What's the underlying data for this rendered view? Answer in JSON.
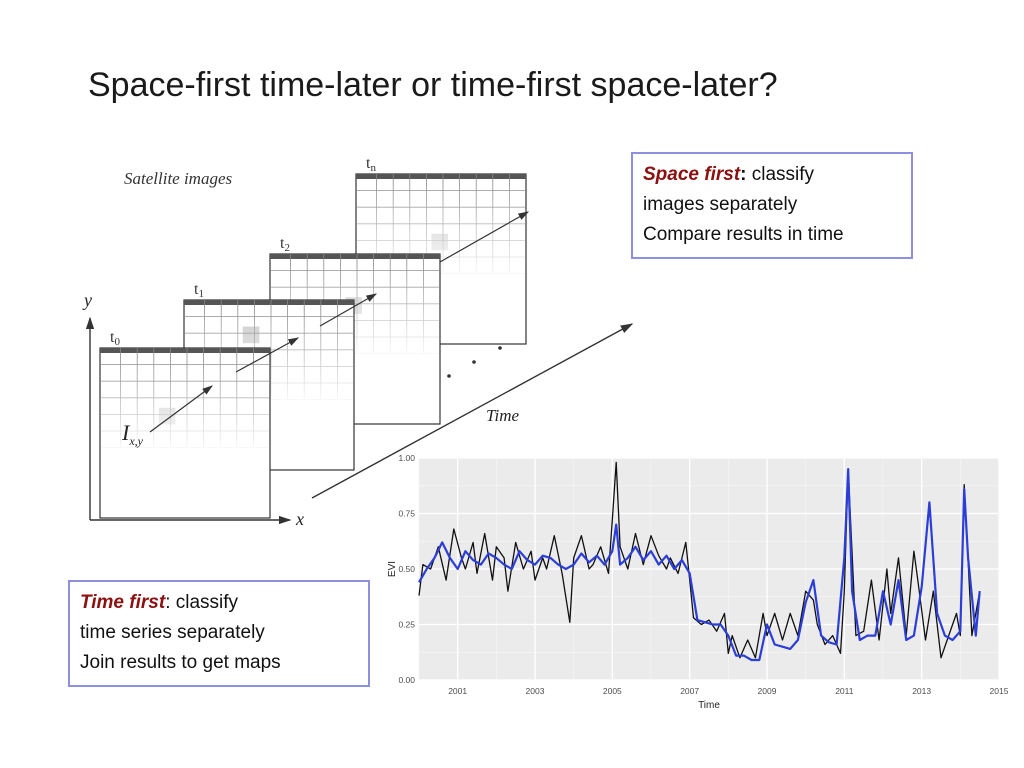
{
  "title": "Space-first time-later or time-first space-later?",
  "diagram": {
    "caption": "Satellite images",
    "frames": [
      {
        "label_base": "t",
        "label_sub": "0"
      },
      {
        "label_base": "t",
        "label_sub": "1"
      },
      {
        "label_base": "t",
        "label_sub": "2"
      },
      {
        "label_base": "t",
        "label_sub": "n"
      }
    ],
    "axis_y": "y",
    "axis_x": "x",
    "time_label": "Time",
    "pixel_label_base": "I",
    "pixel_label_sub": "x,y"
  },
  "space_first": {
    "emph": "Space first",
    "colon": ":",
    "rest": " classify",
    "line2": "images separately",
    "line3": "Compare results in time"
  },
  "time_first": {
    "emph": "Time first",
    "colon": ":",
    "rest": " classify",
    "line2": "time series separately",
    "line3": "Join results to get maps"
  },
  "chart_data": {
    "type": "line",
    "xlabel": "Time",
    "ylabel": "EVI",
    "xlim": [
      2000.0,
      2015.0
    ],
    "ylim": [
      0.0,
      1.0
    ],
    "xticks": [
      2001,
      2003,
      2005,
      2007,
      2009,
      2011,
      2013,
      2015
    ],
    "yticks": [
      "0.00",
      "0.25",
      "0.50",
      "0.75",
      "1.00"
    ],
    "grid": true,
    "series": [
      {
        "color": "#111111",
        "x": [
          2000.0,
          2000.1,
          2000.3,
          2000.5,
          2000.7,
          2000.9,
          2001.1,
          2001.2,
          2001.4,
          2001.5,
          2001.7,
          2001.9,
          2002.0,
          2002.2,
          2002.3,
          2002.5,
          2002.7,
          2002.9,
          2003.0,
          2003.2,
          2003.3,
          2003.5,
          2003.7,
          2003.9,
          2004.0,
          2004.2,
          2004.4,
          2004.5,
          2004.7,
          2004.9,
          2005.0,
          2005.1,
          2005.2,
          2005.4,
          2005.6,
          2005.8,
          2006.0,
          2006.2,
          2006.4,
          2006.5,
          2006.7,
          2006.9,
          2007.0,
          2007.1,
          2007.3,
          2007.5,
          2007.7,
          2007.9,
          2008.0,
          2008.1,
          2008.3,
          2008.5,
          2008.7,
          2008.9,
          2009.0,
          2009.2,
          2009.4,
          2009.6,
          2009.8,
          2010.0,
          2010.2,
          2010.3,
          2010.5,
          2010.7,
          2010.9,
          2011.0,
          2011.1,
          2011.3,
          2011.5,
          2011.7,
          2011.9,
          2012.1,
          2012.2,
          2012.4,
          2012.6,
          2012.8,
          2012.9,
          2013.1,
          2013.3,
          2013.5,
          2013.7,
          2013.9,
          2014.0,
          2014.1,
          2014.3,
          2014.5
        ],
        "y": [
          0.38,
          0.52,
          0.5,
          0.6,
          0.45,
          0.68,
          0.55,
          0.5,
          0.62,
          0.48,
          0.66,
          0.45,
          0.6,
          0.55,
          0.4,
          0.62,
          0.5,
          0.58,
          0.45,
          0.55,
          0.5,
          0.65,
          0.48,
          0.26,
          0.55,
          0.65,
          0.5,
          0.52,
          0.6,
          0.48,
          0.72,
          0.98,
          0.6,
          0.5,
          0.66,
          0.52,
          0.65,
          0.56,
          0.5,
          0.55,
          0.48,
          0.62,
          0.45,
          0.28,
          0.25,
          0.27,
          0.22,
          0.3,
          0.12,
          0.2,
          0.1,
          0.18,
          0.1,
          0.3,
          0.2,
          0.3,
          0.18,
          0.3,
          0.2,
          0.4,
          0.36,
          0.25,
          0.16,
          0.2,
          0.12,
          0.4,
          0.95,
          0.2,
          0.22,
          0.45,
          0.18,
          0.5,
          0.3,
          0.55,
          0.2,
          0.58,
          0.45,
          0.18,
          0.4,
          0.1,
          0.2,
          0.3,
          0.2,
          0.88,
          0.2,
          0.4
        ]
      },
      {
        "color": "#2c3ed8",
        "x": [
          2000.0,
          2000.2,
          2000.4,
          2000.6,
          2000.8,
          2001.0,
          2001.2,
          2001.4,
          2001.6,
          2001.8,
          2002.0,
          2002.2,
          2002.4,
          2002.6,
          2002.8,
          2003.0,
          2003.2,
          2003.4,
          2003.6,
          2003.8,
          2004.0,
          2004.2,
          2004.4,
          2004.6,
          2004.8,
          2005.0,
          2005.1,
          2005.2,
          2005.4,
          2005.6,
          2005.8,
          2006.0,
          2006.2,
          2006.4,
          2006.6,
          2006.8,
          2007.0,
          2007.2,
          2007.4,
          2007.6,
          2007.8,
          2008.0,
          2008.2,
          2008.4,
          2008.6,
          2008.8,
          2009.0,
          2009.2,
          2009.4,
          2009.6,
          2009.8,
          2010.0,
          2010.2,
          2010.4,
          2010.6,
          2010.8,
          2011.0,
          2011.1,
          2011.2,
          2011.4,
          2011.6,
          2011.8,
          2012.0,
          2012.2,
          2012.4,
          2012.6,
          2012.8,
          2013.0,
          2013.2,
          2013.4,
          2013.6,
          2013.8,
          2014.0,
          2014.1,
          2014.2,
          2014.4,
          2014.5
        ],
        "y": [
          0.44,
          0.5,
          0.55,
          0.62,
          0.55,
          0.5,
          0.58,
          0.54,
          0.52,
          0.57,
          0.55,
          0.52,
          0.5,
          0.58,
          0.54,
          0.52,
          0.56,
          0.55,
          0.52,
          0.5,
          0.52,
          0.57,
          0.53,
          0.56,
          0.52,
          0.58,
          0.7,
          0.52,
          0.55,
          0.6,
          0.54,
          0.58,
          0.52,
          0.56,
          0.5,
          0.54,
          0.48,
          0.27,
          0.26,
          0.25,
          0.25,
          0.2,
          0.11,
          0.11,
          0.09,
          0.09,
          0.25,
          0.16,
          0.15,
          0.14,
          0.18,
          0.35,
          0.45,
          0.2,
          0.17,
          0.16,
          0.55,
          0.95,
          0.4,
          0.18,
          0.2,
          0.2,
          0.4,
          0.25,
          0.45,
          0.18,
          0.2,
          0.42,
          0.8,
          0.3,
          0.2,
          0.18,
          0.22,
          0.86,
          0.55,
          0.2,
          0.4
        ]
      }
    ]
  }
}
